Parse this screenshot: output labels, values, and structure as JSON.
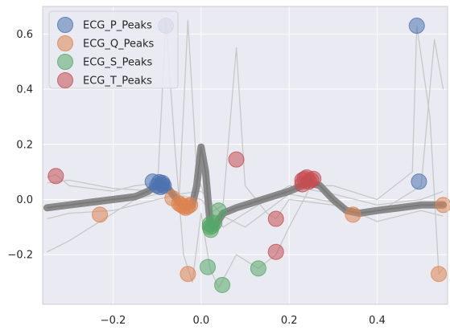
{
  "chart_data": {
    "type": "scatter",
    "xlim": [
      -0.36,
      0.56
    ],
    "ylim": [
      -0.38,
      0.7
    ],
    "xticks": [
      -0.2,
      0.0,
      0.2,
      0.4
    ],
    "xtick_labels": [
      "−0.2",
      "0.0",
      "0.2",
      "0.4"
    ],
    "yticks": [
      -0.2,
      0.0,
      0.2,
      0.4,
      0.6
    ],
    "ytick_labels": [
      "−0.2",
      "0.0",
      "0.2",
      "0.4",
      "0.6"
    ],
    "grid": true,
    "legend_position": "top-left",
    "background": "#eaeaf2",
    "series": [
      {
        "name": "ECG_P_Peaks",
        "color": "#4c72b0",
        "points": [
          [
            -0.11,
            0.065
          ],
          [
            -0.095,
            0.063
          ],
          [
            -0.09,
            0.055
          ],
          [
            -0.085,
            0.05
          ],
          [
            -0.1,
            0.05
          ],
          [
            -0.092,
            0.045
          ],
          [
            -0.088,
            0.06
          ],
          [
            -0.08,
            0.63
          ],
          [
            0.49,
            0.63
          ],
          [
            0.495,
            0.065
          ]
        ]
      },
      {
        "name": "ECG_Q_Peaks",
        "color": "#dd8452",
        "points": [
          [
            -0.23,
            -0.055
          ],
          [
            -0.065,
            0.005
          ],
          [
            -0.05,
            -0.015
          ],
          [
            -0.045,
            -0.02
          ],
          [
            -0.04,
            -0.025
          ],
          [
            -0.035,
            -0.03
          ],
          [
            -0.03,
            -0.025
          ],
          [
            -0.025,
            -0.02
          ],
          [
            -0.03,
            -0.27
          ],
          [
            0.345,
            -0.055
          ],
          [
            0.54,
            -0.27
          ],
          [
            0.55,
            -0.02
          ]
        ]
      },
      {
        "name": "ECG_S_Peaks",
        "color": "#55a868",
        "points": [
          [
            0.02,
            -0.09
          ],
          [
            0.02,
            -0.1
          ],
          [
            0.022,
            -0.11
          ],
          [
            0.025,
            -0.095
          ],
          [
            0.03,
            -0.085
          ],
          [
            0.04,
            -0.04
          ],
          [
            0.015,
            -0.245
          ],
          [
            0.048,
            -0.31
          ],
          [
            0.13,
            -0.25
          ]
        ]
      },
      {
        "name": "ECG_T_Peaks",
        "color": "#c44e52",
        "points": [
          [
            -0.33,
            0.085
          ],
          [
            0.08,
            0.145
          ],
          [
            0.17,
            -0.07
          ],
          [
            0.17,
            -0.19
          ],
          [
            0.23,
            0.07
          ],
          [
            0.235,
            0.075
          ],
          [
            0.24,
            0.08
          ],
          [
            0.245,
            0.065
          ],
          [
            0.25,
            0.07
          ],
          [
            0.23,
            0.055
          ],
          [
            0.255,
            0.075
          ]
        ]
      }
    ],
    "traces": {
      "color_gray": "#808080",
      "color_light": "#c8c8c8",
      "mean_beat": [
        [
          -0.35,
          -0.03
        ],
        [
          -0.3,
          -0.02
        ],
        [
          -0.25,
          -0.01
        ],
        [
          -0.2,
          0.0
        ],
        [
          -0.15,
          0.01
        ],
        [
          -0.12,
          0.03
        ],
        [
          -0.1,
          0.055
        ],
        [
          -0.08,
          0.05
        ],
        [
          -0.06,
          0.01
        ],
        [
          -0.04,
          -0.03
        ],
        [
          -0.02,
          -0.02
        ],
        [
          -0.01,
          0.05
        ],
        [
          0.0,
          0.19
        ],
        [
          0.01,
          0.1
        ],
        [
          0.02,
          -0.08
        ],
        [
          0.03,
          -0.1
        ],
        [
          0.05,
          -0.05
        ],
        [
          0.08,
          -0.03
        ],
        [
          0.12,
          -0.01
        ],
        [
          0.16,
          0.01
        ],
        [
          0.2,
          0.03
        ],
        [
          0.23,
          0.05
        ],
        [
          0.25,
          0.06
        ],
        [
          0.27,
          0.05
        ],
        [
          0.3,
          0.0
        ],
        [
          0.33,
          -0.04
        ],
        [
          0.36,
          -0.05
        ],
        [
          0.4,
          -0.04
        ],
        [
          0.45,
          -0.03
        ],
        [
          0.5,
          -0.02
        ],
        [
          0.55,
          -0.02
        ]
      ],
      "individual_beats": [
        [
          [
            -0.35,
            -0.19
          ],
          [
            -0.3,
            -0.15
          ],
          [
            -0.25,
            -0.1
          ],
          [
            -0.2,
            -0.05
          ],
          [
            -0.15,
            0.0
          ],
          [
            -0.1,
            0.02
          ],
          [
            -0.08,
            0.65
          ],
          [
            -0.06,
            0.2
          ],
          [
            -0.04,
            -0.2
          ],
          [
            -0.02,
            -0.3
          ],
          [
            0.0,
            -0.05
          ],
          [
            0.02,
            -0.25
          ],
          [
            0.04,
            -0.32
          ],
          [
            0.08,
            -0.2
          ],
          [
            0.13,
            -0.25
          ],
          [
            0.17,
            -0.2
          ],
          [
            0.2,
            -0.1
          ],
          [
            0.25,
            0.05
          ],
          [
            0.3,
            0.05
          ],
          [
            0.4,
            0.0
          ],
          [
            0.48,
            0.1
          ],
          [
            0.49,
            0.63
          ],
          [
            0.52,
            0.3
          ],
          [
            0.54,
            -0.27
          ],
          [
            0.55,
            -0.25
          ]
        ],
        [
          [
            -0.35,
            0.08
          ],
          [
            -0.33,
            0.09
          ],
          [
            -0.3,
            0.05
          ],
          [
            -0.25,
            0.04
          ],
          [
            -0.2,
            0.03
          ],
          [
            -0.15,
            0.05
          ],
          [
            -0.1,
            0.06
          ],
          [
            -0.05,
            0.0
          ],
          [
            -0.03,
            0.65
          ],
          [
            -0.01,
            0.1
          ],
          [
            0.02,
            -0.05
          ],
          [
            0.05,
            -0.02
          ],
          [
            0.08,
            0.55
          ],
          [
            0.1,
            0.05
          ],
          [
            0.15,
            -0.05
          ],
          [
            0.17,
            -0.07
          ],
          [
            0.2,
            0.0
          ],
          [
            0.3,
            -0.02
          ],
          [
            0.4,
            -0.05
          ],
          [
            0.5,
            0.05
          ],
          [
            0.53,
            0.58
          ],
          [
            0.55,
            0.4
          ]
        ],
        [
          [
            -0.35,
            0.06
          ],
          [
            -0.3,
            0.07
          ],
          [
            -0.2,
            0.04
          ],
          [
            -0.1,
            0.03
          ],
          [
            0.0,
            0.0
          ],
          [
            0.05,
            -0.1
          ],
          [
            0.1,
            -0.05
          ],
          [
            0.2,
            0.05
          ],
          [
            0.3,
            0.02
          ],
          [
            0.4,
            -0.02
          ],
          [
            0.5,
            0.0
          ],
          [
            0.55,
            0.03
          ]
        ],
        [
          [
            -0.35,
            -0.07
          ],
          [
            -0.3,
            -0.05
          ],
          [
            -0.2,
            -0.04
          ],
          [
            -0.1,
            0.0
          ],
          [
            -0.05,
            0.02
          ],
          [
            0.0,
            0.03
          ],
          [
            0.05,
            -0.06
          ],
          [
            0.1,
            -0.1
          ],
          [
            0.2,
            0.02
          ],
          [
            0.3,
            -0.01
          ],
          [
            0.4,
            -0.08
          ],
          [
            0.5,
            -0.04
          ],
          [
            0.55,
            -0.06
          ]
        ]
      ]
    }
  }
}
